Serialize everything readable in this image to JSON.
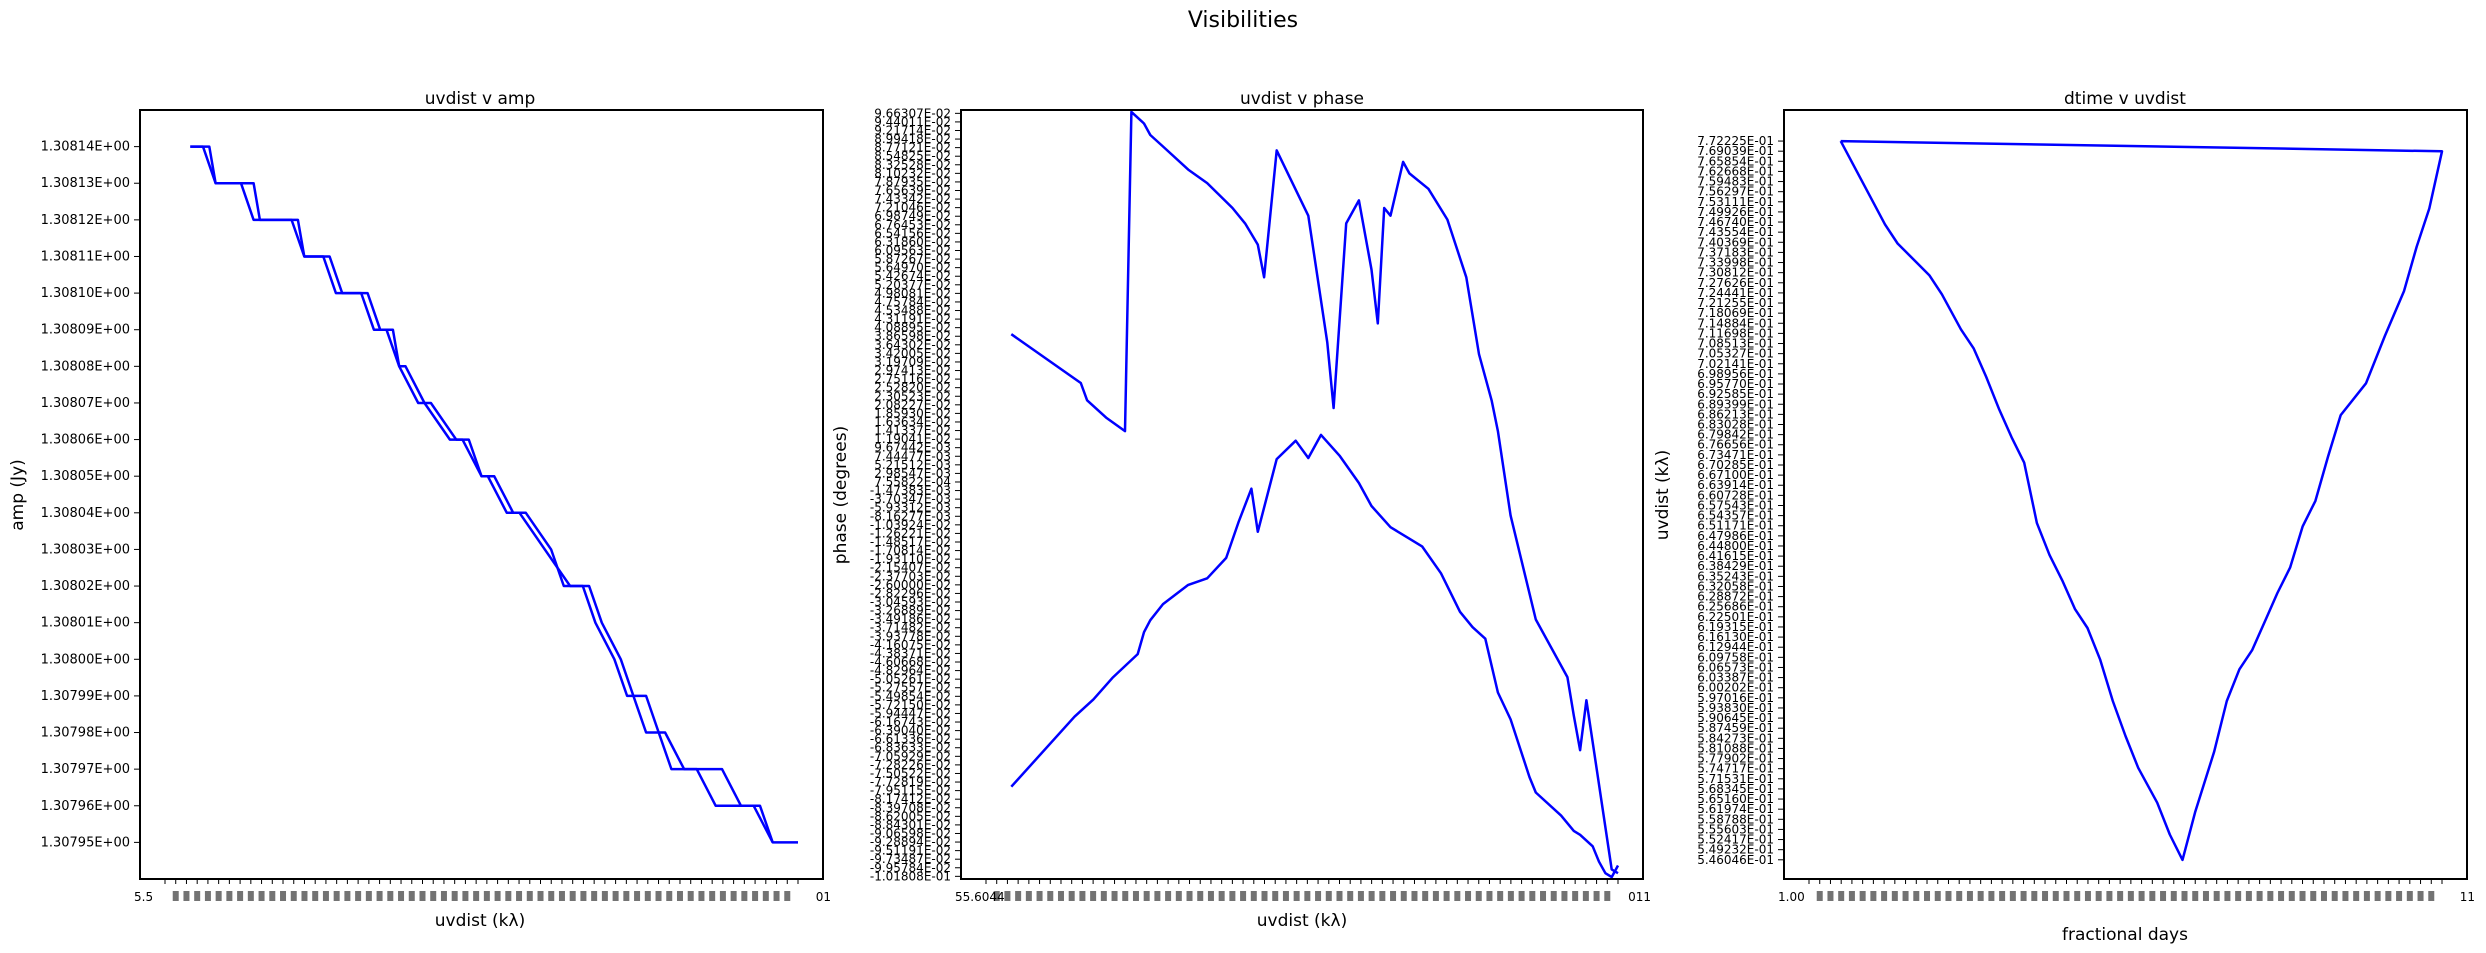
{
  "figure_title": "Visibilities",
  "colors": {
    "line": "#0000ff",
    "axes": "#000000",
    "background": "#ffffff"
  },
  "chart_data": [
    {
      "type": "line",
      "title": "uvdist v amp",
      "xlabel": "uvdist (kλ)",
      "ylabel": "amp (Jy)",
      "grid": false,
      "legend": "none",
      "ylim": [
        1.30794,
        1.30815
      ],
      "xlim": [
        0,
        100
      ],
      "y_tick_labels": [
        "1.30814E+00",
        "1.30813E+00",
        "1.30812E+00",
        "1.30811E+00",
        "1.30810E+00",
        "1.30809E+00",
        "1.30808E+00",
        "1.30807E+00",
        "1.30806E+00",
        "1.30805E+00",
        "1.30804E+00",
        "1.30803E+00",
        "1.30802E+00",
        "1.30801E+00",
        "1.30800E+00",
        "1.30799E+00",
        "1.30798E+00",
        "1.30797E+00",
        "1.30796E+00",
        "1.30795E+00"
      ],
      "x_tick_labels_note": "dense overlapping uvdist tick labels (values ~5.5E+01 ... 7.7E+01)",
      "x_tick_first": "5.5",
      "x_tick_last": "01",
      "series": [
        {
          "x": [
            4,
            7,
            8,
            14,
            15,
            21,
            22,
            26,
            28,
            32,
            34,
            36,
            37,
            38,
            41,
            45,
            47,
            50,
            51,
            54,
            56,
            60,
            64,
            67,
            69,
            72,
            74,
            75,
            76,
            78,
            80,
            84,
            87,
            94,
            96,
            100
          ],
          "y": [
            1.30814,
            1.30814,
            1.30813,
            1.30813,
            1.30812,
            1.30812,
            1.30811,
            1.30811,
            1.3081,
            1.3081,
            1.30809,
            1.30809,
            1.30808,
            1.30808,
            1.30807,
            1.30806,
            1.30806,
            1.30805,
            1.30805,
            1.30804,
            1.30804,
            1.30803,
            1.30802,
            1.30802,
            1.30801,
            1.308,
            1.30799,
            1.30799,
            1.30799,
            1.30798,
            1.30797,
            1.30797,
            1.30796,
            1.30796,
            1.30795,
            1.30795
          ]
        },
        {
          "x": [
            4,
            6,
            8,
            12,
            14,
            20,
            22,
            25,
            27,
            31,
            33,
            35,
            37,
            40,
            42,
            46,
            48,
            50,
            52,
            55,
            57,
            61,
            63,
            66,
            68,
            71,
            73,
            74,
            76,
            79,
            82,
            88,
            91,
            93,
            96
          ],
          "y": [
            1.30814,
            1.30814,
            1.30813,
            1.30813,
            1.30812,
            1.30812,
            1.30811,
            1.30811,
            1.3081,
            1.3081,
            1.30809,
            1.30809,
            1.30808,
            1.30807,
            1.30807,
            1.30806,
            1.30806,
            1.30805,
            1.30805,
            1.30804,
            1.30804,
            1.30803,
            1.30802,
            1.30802,
            1.30801,
            1.308,
            1.30799,
            1.30799,
            1.30798,
            1.30798,
            1.30797,
            1.30797,
            1.30796,
            1.30796,
            1.30795
          ]
        }
      ]
    },
    {
      "type": "line",
      "title": "uvdist v phase",
      "xlabel": "uvdist (kλ)",
      "ylabel": "phase (degrees)",
      "grid": false,
      "legend": "none",
      "ylim": [
        -0.1025,
        0.0975
      ],
      "xlim": [
        0,
        100
      ],
      "y_tick_first": "9.66307E-02",
      "y_tick_last": "-1.01808E-01",
      "y_tick_count": 90,
      "x_tick_labels_note": "dense overlapping uvdist tick labels",
      "x_tick_first": "55.6044",
      "x_tick_last": "011",
      "series": [
        {
          "x": [
            4,
            14,
            17,
            20,
            24,
            25,
            26,
            28,
            32,
            35,
            38,
            40,
            42,
            43,
            46,
            49,
            51,
            53,
            56,
            59,
            61,
            64,
            67,
            69,
            72,
            75,
            77,
            79,
            81,
            83,
            86,
            87,
            91,
            93,
            94,
            96,
            97,
            98,
            99,
            100
          ],
          "y": [
            -0.0785,
            -0.0603,
            -0.0558,
            -0.0502,
            -0.044,
            -0.0383,
            -0.0352,
            -0.031,
            -0.026,
            -0.0243,
            -0.019,
            -0.0095,
            -0.001,
            -0.0122,
            0.0067,
            0.0115,
            0.007,
            0.013,
            0.0075,
            0.0005,
            -0.0055,
            -0.011,
            -0.014,
            -0.016,
            -0.023,
            -0.033,
            -0.037,
            -0.04,
            -0.054,
            -0.061,
            -0.076,
            -0.08,
            -0.086,
            -0.09,
            -0.091,
            -0.094,
            -0.098,
            -0.101,
            -0.102,
            -0.099
          ]
        },
        {
          "x": [
            4,
            15,
            16,
            19,
            22,
            23,
            25,
            26,
            28,
            32,
            35,
            39,
            41,
            43,
            44,
            46,
            51,
            54,
            55,
            57,
            59,
            61,
            62,
            63,
            64,
            66,
            67,
            70,
            73,
            76,
            78,
            80,
            81,
            83,
            87,
            92,
            93,
            94,
            95,
            99,
            100
          ],
          "y": [
            0.0392,
            0.0265,
            0.022,
            0.0175,
            0.014,
            0.097,
            0.094,
            0.091,
            0.088,
            0.082,
            0.0785,
            0.072,
            0.068,
            0.0625,
            0.054,
            0.087,
            0.07,
            0.037,
            0.02,
            0.068,
            0.074,
            0.056,
            0.042,
            0.072,
            0.07,
            0.084,
            0.081,
            0.077,
            0.069,
            0.054,
            0.034,
            0.022,
            0.014,
            -0.008,
            -0.035,
            -0.05,
            -0.06,
            -0.069,
            -0.056,
            -0.1,
            -0.101
          ]
        }
      ]
    },
    {
      "type": "line",
      "title": "dtime v uvdist",
      "xlabel": "fractional days",
      "ylabel": "uvdist (kλ)",
      "grid": false,
      "legend": "none",
      "ylim": [
        0.54,
        0.782
      ],
      "xlim": [
        0,
        100
      ],
      "y_tick_first": "7.72225E-01",
      "y_tick_last": "5.46046E-01",
      "y_tick_count": 72,
      "x_tick_labels_note": "dense overlapping fractional day tick labels",
      "x_tick_first": "1.00",
      "x_tick_last": "11",
      "series": [
        {
          "x": [
            5,
            12,
            14,
            17,
            19,
            21,
            24,
            26,
            28,
            30,
            32,
            34,
            36,
            38,
            40,
            42,
            44,
            46,
            48,
            50,
            52,
            55,
            57,
            59,
            61,
            64,
            66,
            68,
            70,
            72,
            74,
            76,
            78,
            80,
            82,
            84,
            88,
            91,
            94,
            96,
            98,
            100,
            5
          ],
          "y": [
            0.7722,
            0.746,
            0.74,
            0.734,
            0.73,
            0.724,
            0.713,
            0.707,
            0.698,
            0.688,
            0.679,
            0.671,
            0.652,
            0.642,
            0.634,
            0.625,
            0.619,
            0.609,
            0.596,
            0.585,
            0.575,
            0.564,
            0.554,
            0.546,
            0.561,
            0.58,
            0.596,
            0.606,
            0.612,
            0.621,
            0.63,
            0.638,
            0.651,
            0.659,
            0.673,
            0.686,
            0.696,
            0.711,
            0.725,
            0.739,
            0.751,
            0.769,
            0.7722
          ]
        }
      ]
    }
  ]
}
